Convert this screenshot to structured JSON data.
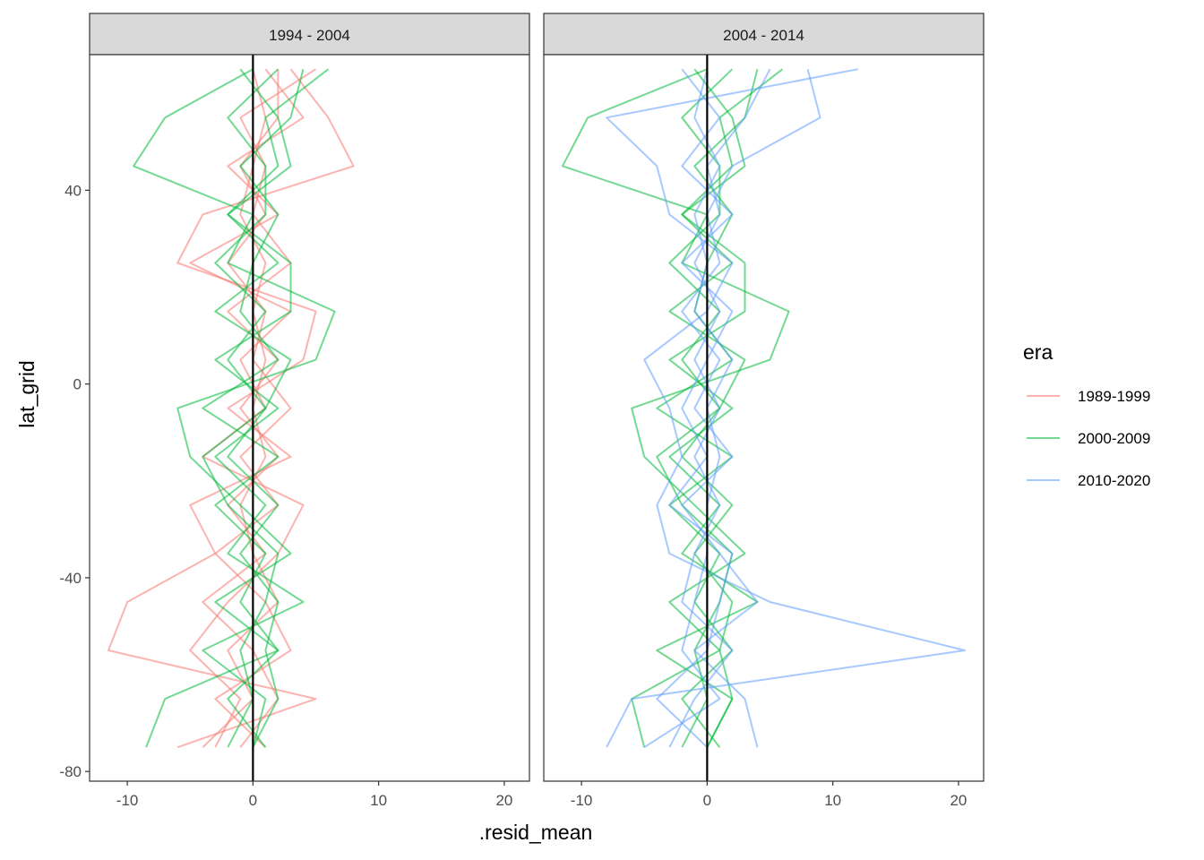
{
  "chart_data": {
    "type": "line",
    "xlabel": ".resid_mean",
    "ylabel": "lat_grid",
    "xlim": [
      -13,
      22
    ],
    "ylim": [
      -82,
      68
    ],
    "x_ticks": [
      -10,
      0,
      10,
      20
    ],
    "y_ticks": [
      -80,
      -40,
      0,
      40
    ],
    "grid": false,
    "reference_line_x": 0,
    "legend": {
      "title": "era",
      "placement": "right",
      "entries": [
        {
          "label": "1989-1999",
          "color": "#F8766D"
        },
        {
          "label": "2000-2009",
          "color": "#00BA38"
        },
        {
          "label": "2010-2020",
          "color": "#619CFF"
        }
      ]
    },
    "panels": [
      {
        "strip": "1994 - 2004",
        "series": [
          {
            "era": "1989-1999",
            "lat": [
              -75,
              -65,
              -55,
              -45,
              -35,
              -25,
              -15,
              -5,
              5,
              15,
              25,
              35,
              45,
              55,
              65
            ],
            "x": [
              -6,
              5,
              -11.5,
              -10,
              -3,
              -5,
              3,
              -2,
              4,
              5,
              -6,
              -4,
              8,
              6,
              3
            ]
          },
          {
            "era": "1989-1999",
            "lat": [
              -75,
              -65,
              -55,
              -45,
              -35,
              -25,
              -15,
              -5,
              5,
              15,
              25,
              35,
              45,
              55,
              65
            ],
            "x": [
              -3,
              -1,
              -5,
              -2,
              2,
              4,
              -4,
              1,
              -1,
              3,
              -5,
              2,
              -2,
              4,
              1
            ]
          },
          {
            "era": "1989-1999",
            "lat": [
              -75,
              -65,
              -55,
              -45,
              -35,
              -25,
              -15,
              -5,
              5,
              15,
              25,
              35,
              45,
              55,
              65
            ],
            "x": [
              -1,
              2,
              0,
              -4,
              1,
              -2,
              2,
              -1,
              2,
              -2,
              3,
              0,
              1,
              -1,
              5
            ]
          },
          {
            "era": "1989-1999",
            "lat": [
              -75,
              -65,
              -55,
              -45,
              -35,
              -25,
              -15,
              -5,
              5,
              15,
              25,
              35,
              45,
              55,
              65
            ],
            "x": [
              1,
              -3,
              3,
              1,
              -3,
              2,
              -1,
              3,
              0,
              1,
              -2,
              1,
              -1,
              2,
              2
            ]
          },
          {
            "era": "1989-1999",
            "lat": [
              -75,
              -65,
              -55,
              -45,
              -35,
              -25,
              -15,
              -5,
              5,
              15,
              25,
              35,
              45,
              55,
              65
            ],
            "x": [
              -4,
              0,
              -2,
              2,
              0,
              -1,
              1,
              0,
              1,
              0,
              1,
              -1,
              0,
              1,
              0
            ]
          },
          {
            "era": "2000-2009",
            "lat": [
              -75,
              -65,
              -55,
              -45,
              -35,
              -25,
              -15,
              -5,
              5,
              15,
              25,
              35,
              45,
              55,
              65
            ],
            "x": [
              -8.5,
              -7,
              2,
              -3,
              3,
              -1,
              -5,
              -6,
              5,
              6.5,
              -2,
              0,
              -9.5,
              -7,
              0
            ]
          },
          {
            "era": "2000-2009",
            "lat": [
              -75,
              -65,
              -55,
              -45,
              -35,
              -25,
              -15,
              -5,
              5,
              15,
              25,
              35,
              45,
              55,
              65
            ],
            "x": [
              0,
              1,
              -4,
              4,
              -2,
              1,
              -3,
              2,
              -3,
              3,
              3,
              -2,
              2,
              1,
              6
            ]
          },
          {
            "era": "2000-2009",
            "lat": [
              -75,
              -65,
              -55,
              -45,
              -35,
              -25,
              -15,
              -5,
              5,
              15,
              25,
              35,
              45,
              55,
              65
            ],
            "x": [
              1,
              -2,
              2,
              -1,
              1,
              -3,
              2,
              -4,
              2,
              -1,
              0,
              2,
              -1,
              3,
              4
            ]
          },
          {
            "era": "2000-2009",
            "lat": [
              -75,
              -65,
              -55,
              -45,
              -35,
              -25,
              -15,
              -5,
              5,
              15,
              25,
              35,
              45,
              55,
              65
            ],
            "x": [
              0,
              2,
              1,
              2,
              -1,
              2,
              -2,
              1,
              -2,
              1,
              -3,
              1,
              1,
              -2,
              2
            ]
          },
          {
            "era": "2000-2009",
            "lat": [
              -75,
              -65,
              -55,
              -45,
              -35,
              -25,
              -15,
              -5,
              5,
              15,
              25,
              35,
              45,
              55,
              65
            ],
            "x": [
              -2,
              0,
              -1,
              1,
              2,
              -2,
              -4,
              1,
              3,
              -3,
              2,
              -2,
              3,
              2,
              -1
            ]
          }
        ]
      },
      {
        "strip": "2004 - 2014",
        "series": [
          {
            "era": "2000-2009",
            "lat": [
              -75,
              -65,
              -55,
              -45,
              -35,
              -25,
              -15,
              -5,
              5,
              15,
              25,
              35,
              45,
              55,
              65
            ],
            "x": [
              -5,
              -6,
              1,
              -3,
              3,
              -1,
              -5,
              -6,
              5,
              6.5,
              -2,
              0,
              -11.5,
              -9.5,
              0
            ]
          },
          {
            "era": "2000-2009",
            "lat": [
              -75,
              -65,
              -55,
              -45,
              -35,
              -25,
              -15,
              -5,
              5,
              15,
              25,
              35,
              45,
              55,
              65
            ],
            "x": [
              0,
              2,
              -4,
              4,
              -2,
              1,
              -3,
              2,
              -3,
              3,
              3,
              -2,
              2,
              1,
              6
            ]
          },
          {
            "era": "2000-2009",
            "lat": [
              -75,
              -65,
              -55,
              -45,
              -35,
              -25,
              -15,
              -5,
              5,
              15,
              25,
              35,
              45,
              55,
              65
            ],
            "x": [
              1,
              -2,
              2,
              -1,
              1,
              -3,
              2,
              -4,
              2,
              -1,
              0,
              2,
              -1,
              3,
              4
            ]
          },
          {
            "era": "2000-2009",
            "lat": [
              -75,
              -65,
              -55,
              -45,
              -35,
              -25,
              -15,
              -5,
              5,
              15,
              25,
              35,
              45,
              55,
              65
            ],
            "x": [
              0,
              2,
              1,
              2,
              -1,
              2,
              -2,
              1,
              -2,
              1,
              -3,
              1,
              1,
              -2,
              2
            ]
          },
          {
            "era": "2000-2009",
            "lat": [
              -75,
              -65,
              -55,
              -45,
              -35,
              -25,
              -15,
              -5,
              5,
              15,
              25,
              35,
              45,
              55,
              65
            ],
            "x": [
              -2,
              0,
              -1,
              1,
              2,
              -2,
              -4,
              1,
              3,
              -3,
              2,
              -2,
              3,
              2,
              -1
            ]
          },
          {
            "era": "2010-2020",
            "lat": [
              -75,
              -65,
              -55,
              -45,
              -35,
              -25,
              -15,
              -5,
              5,
              15,
              25,
              35,
              45,
              55,
              65
            ],
            "x": [
              -8,
              -6,
              20.5,
              5,
              -3,
              -4,
              -2,
              -3,
              -5,
              0,
              2,
              -3,
              -4,
              -8,
              12
            ]
          },
          {
            "era": "2010-2020",
            "lat": [
              -75,
              -65,
              -55,
              -45,
              -35,
              -25,
              -15,
              -5,
              5,
              15,
              25,
              35,
              45,
              55,
              65
            ],
            "x": [
              4,
              3,
              -1,
              4,
              1,
              -2,
              2,
              -1,
              1,
              -2,
              1,
              0,
              2,
              9,
              8
            ]
          },
          {
            "era": "2010-2020",
            "lat": [
              -75,
              -65,
              -55,
              -45,
              -35,
              -25,
              -15,
              -5,
              5,
              15,
              25,
              35,
              45,
              55,
              65
            ],
            "x": [
              -3,
              -1,
              2,
              -2,
              -1,
              1,
              -1,
              1,
              -1,
              1,
              -1,
              1,
              0,
              3,
              5
            ]
          },
          {
            "era": "2010-2020",
            "lat": [
              -75,
              -65,
              -55,
              -45,
              -35,
              -25,
              -15,
              -5,
              5,
              15,
              25,
              35,
              45,
              55,
              65
            ],
            "x": [
              0,
              -4,
              0,
              1,
              2,
              -3,
              0,
              -2,
              0,
              2,
              -2,
              2,
              -2,
              1,
              -2
            ]
          },
          {
            "era": "2010-2020",
            "lat": [
              -75,
              -65,
              -55,
              -45,
              -35,
              -25,
              -15,
              -5,
              5,
              15,
              25,
              35,
              45,
              55,
              65
            ],
            "x": [
              -5,
              1,
              -2,
              -1,
              0,
              0,
              1,
              0,
              2,
              -1,
              0,
              -1,
              1,
              -1,
              0
            ]
          }
        ]
      }
    ]
  }
}
